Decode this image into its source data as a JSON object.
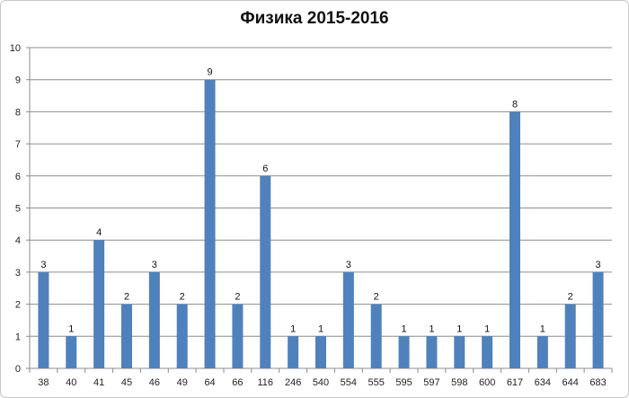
{
  "chart_data": {
    "type": "bar",
    "title": "Физика 2015-2016",
    "xlabel": "",
    "ylabel": "",
    "categories": [
      "38",
      "40",
      "41",
      "45",
      "46",
      "49",
      "64",
      "66",
      "116",
      "246",
      "540",
      "554",
      "555",
      "595",
      "597",
      "598",
      "600",
      "617",
      "634",
      "644",
      "683"
    ],
    "values": [
      3,
      1,
      4,
      2,
      3,
      2,
      9,
      2,
      6,
      1,
      1,
      3,
      2,
      1,
      1,
      1,
      1,
      8,
      1,
      2,
      3
    ],
    "ylim": [
      0,
      10
    ],
    "yticks": [
      0,
      1,
      2,
      3,
      4,
      5,
      6,
      7,
      8,
      9,
      10
    ],
    "grid": true,
    "legend": "none",
    "bar_color": "#4f81bd",
    "data_labels": true
  }
}
